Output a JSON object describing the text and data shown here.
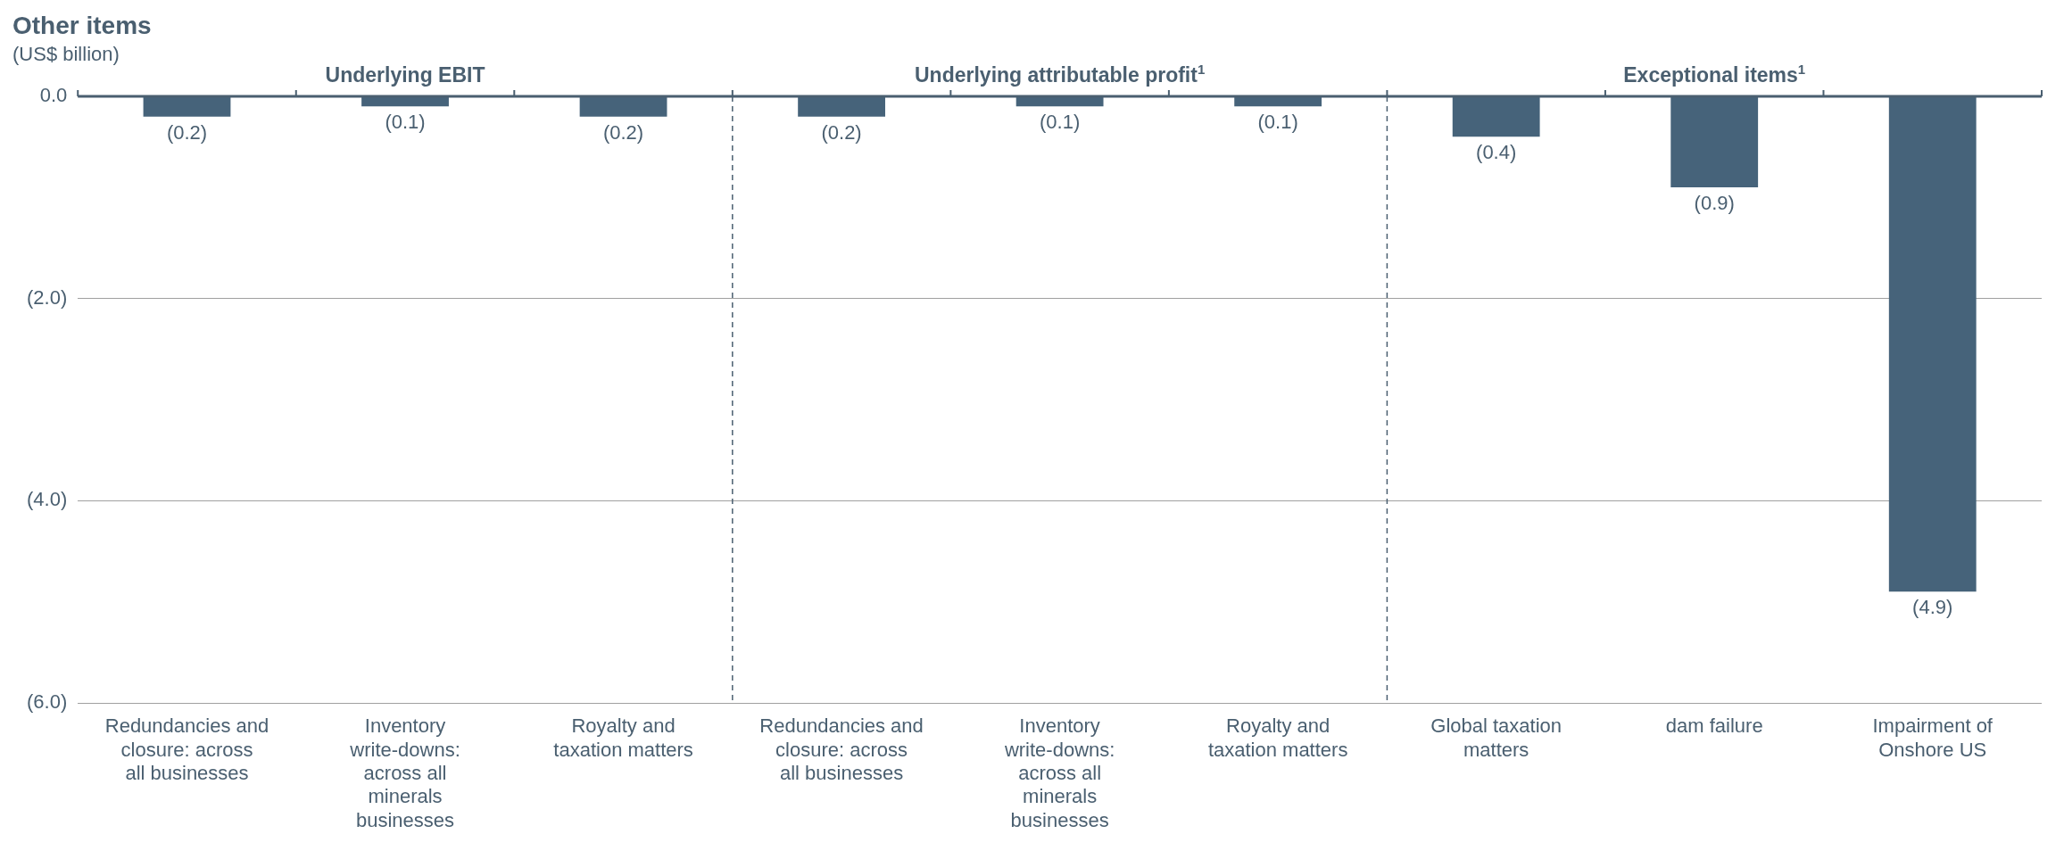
{
  "chart_data": {
    "type": "bar",
    "title": "Other items",
    "subtitle": "(US$ billion)",
    "categories": [
      "Redundancies and closure: across all businesses",
      "Inventory write-downs: across all minerals businesses",
      "Royalty and taxation matters",
      "Redundancies and closure: across all businesses",
      "Inventory write-downs: across all minerals businesses",
      "Royalty and taxation matters",
      "Global taxation matters",
      "dam failure",
      "Impairment of Onshore US"
    ],
    "values": [
      -0.2,
      -0.1,
      -0.2,
      -0.2,
      -0.1,
      -0.1,
      -0.4,
      -0.9,
      -4.9
    ],
    "value_labels": [
      "(0.2)",
      "(0.1)",
      "(0.2)",
      "(0.2)",
      "(0.1)",
      "(0.1)",
      "(0.4)",
      "(0.9)",
      "(4.9)"
    ],
    "color": "#46637a",
    "ylim": [
      -6,
      0
    ],
    "yticks": [
      {
        "value": 0,
        "label": "0.0"
      },
      {
        "value": -2,
        "label": "(2.0)"
      },
      {
        "value": -4,
        "label": "(4.0)"
      },
      {
        "value": -6,
        "label": "(6.0)"
      }
    ],
    "grid": "y",
    "annotations": [
      "Underlying EBIT",
      "Underlying attributable profit$^{1}$",
      "Exceptional items$^{1}$"
    ]
  }
}
